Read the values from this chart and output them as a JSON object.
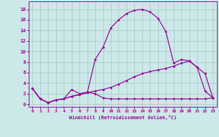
{
  "background_color": "#cce8e8",
  "grid_color": "#aacccc",
  "line_color": "#990099",
  "xlabel": "Windchill (Refroidissement éolien,°C)",
  "x_ticks": [
    0,
    1,
    2,
    3,
    4,
    5,
    6,
    7,
    8,
    9,
    10,
    11,
    12,
    13,
    14,
    15,
    16,
    17,
    18,
    19,
    20,
    21,
    22,
    23
  ],
  "y_ticks": [
    0,
    2,
    4,
    6,
    8,
    10,
    12,
    14,
    16,
    18
  ],
  "ylim": [
    -0.5,
    19.5
  ],
  "xlim": [
    -0.5,
    23.5
  ],
  "lines": [
    [
      3.0,
      1.0,
      0.3,
      0.8,
      1.0,
      2.8,
      2.0,
      2.3,
      2.0,
      1.2,
      1.0,
      1.0,
      1.0,
      1.0,
      1.0,
      1.0,
      1.0,
      1.0,
      1.0,
      1.0,
      1.0,
      1.0,
      1.0,
      1.2
    ],
    [
      3.0,
      1.0,
      0.3,
      0.8,
      1.0,
      1.5,
      1.8,
      2.2,
      2.5,
      2.8,
      3.2,
      3.8,
      4.5,
      5.2,
      5.8,
      6.2,
      6.5,
      6.8,
      7.2,
      7.8,
      8.2,
      7.0,
      5.8,
      1.2
    ],
    [
      3.0,
      1.0,
      0.3,
      0.8,
      1.0,
      1.5,
      1.8,
      2.2,
      8.5,
      10.8,
      14.5,
      16.0,
      17.2,
      17.8,
      18.0,
      17.5,
      16.3,
      13.8,
      7.8,
      8.5,
      8.2,
      7.0,
      2.5,
      1.2
    ]
  ]
}
